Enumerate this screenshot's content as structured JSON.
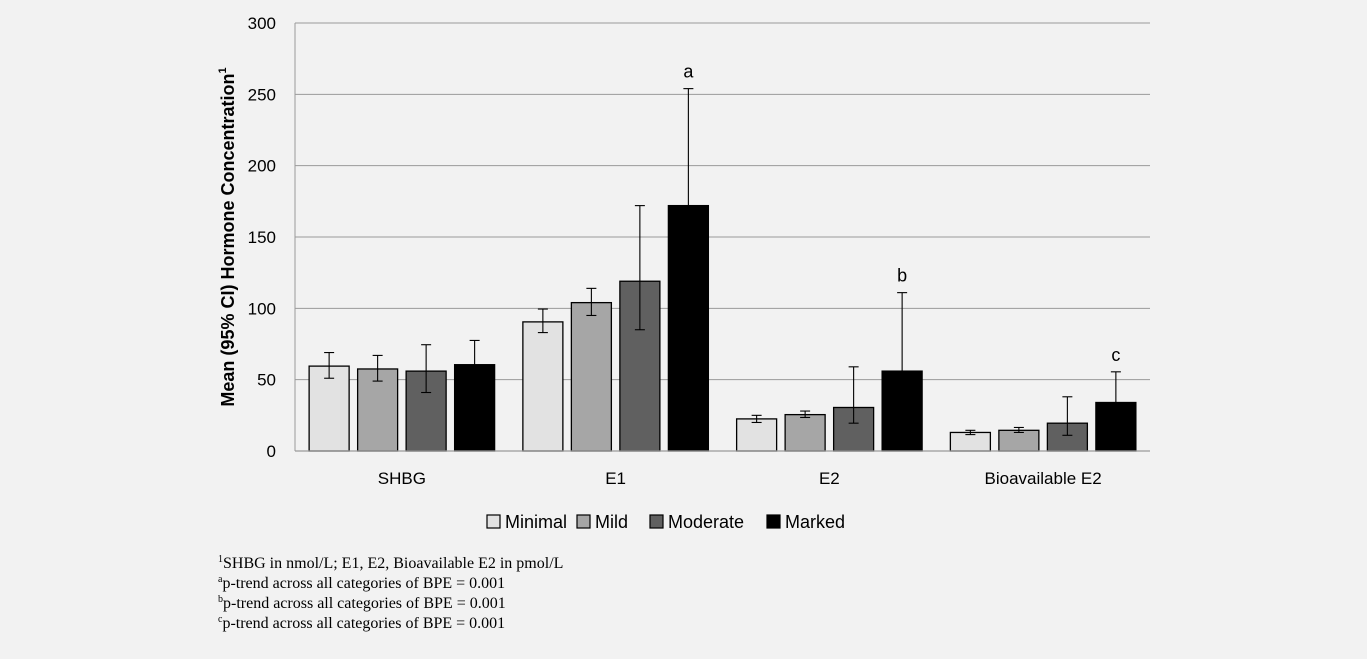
{
  "chart_data": {
    "type": "bar",
    "ylabel": "Mean (95% CI)  Hormone Concentration",
    "ylabel_sup": "1",
    "ylim": [
      0,
      300
    ],
    "yticks": [
      0,
      50,
      100,
      150,
      200,
      250,
      300
    ],
    "grid": true,
    "legend_position": "bottom",
    "categories": [
      "SHBG",
      "E1",
      "E2",
      "Bioavailable E2"
    ],
    "series": [
      {
        "name": "Minimal",
        "color": "#e2e2e2",
        "values": [
          59.5,
          90.5,
          22.5,
          13
        ],
        "ci_low": [
          51,
          83,
          20,
          11.5
        ],
        "ci_high": [
          69,
          99.5,
          25,
          14.5
        ]
      },
      {
        "name": "Mild",
        "color": "#a6a6a6",
        "values": [
          57.5,
          104,
          25.5,
          14.5
        ],
        "ci_low": [
          49,
          95,
          23.5,
          13
        ],
        "ci_high": [
          67,
          114,
          28,
          16.5
        ]
      },
      {
        "name": "Moderate",
        "color": "#606060",
        "values": [
          56,
          119,
          30.5,
          19.5
        ],
        "ci_low": [
          41,
          85,
          19.5,
          11
        ],
        "ci_high": [
          74.5,
          172,
          59,
          38
        ]
      },
      {
        "name": "Marked",
        "color": "#000000",
        "values": [
          60.5,
          172,
          56,
          34
        ],
        "ci_low": [
          46,
          145,
          37,
          21
        ],
        "ci_high": [
          77.5,
          254,
          111,
          55.5
        ]
      }
    ],
    "annotations": [
      {
        "category": "E1",
        "series": "Marked",
        "text": "a"
      },
      {
        "category": "E2",
        "series": "Marked",
        "text": "b"
      },
      {
        "category": "Bioavailable E2",
        "series": "Marked",
        "text": "c"
      }
    ]
  },
  "footnotes": [
    {
      "sup": "1",
      "text": "SHBG in nmol/L; E1, E2, Bioavailable E2 in pmol/L"
    },
    {
      "sup": "a",
      "text": "p-trend across all categories of BPE = 0.001"
    },
    {
      "sup": "b",
      "text": "p-trend across all categories of BPE = 0.001"
    },
    {
      "sup": "c",
      "text": "p-trend across all categories of BPE = 0.001"
    }
  ]
}
